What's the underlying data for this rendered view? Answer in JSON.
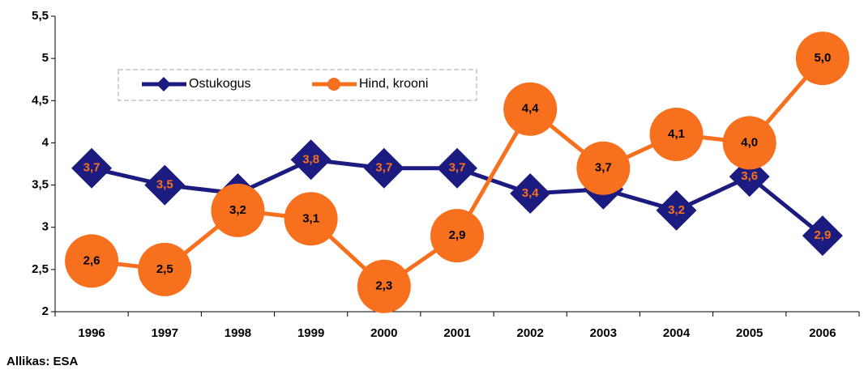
{
  "chart_data": {
    "type": "line",
    "categories": [
      "1996",
      "1997",
      "1998",
      "1999",
      "2000",
      "2001",
      "2002",
      "2003",
      "2004",
      "2005",
      "2006"
    ],
    "series": [
      {
        "name": "Ostukogus",
        "color": "#1c1c80",
        "marker": "diamond",
        "values": [
          3.7,
          3.5,
          3.4,
          3.8,
          3.7,
          3.7,
          3.4,
          3.45,
          3.2,
          3.6,
          2.9
        ],
        "value_labels": [
          "3,7",
          "3,5",
          "3,4",
          "3,8",
          "3,7",
          "3,7",
          "3,4",
          null,
          "3,2",
          "3,6",
          "2,9"
        ]
      },
      {
        "name": "Hind, krooni",
        "color": "#f7701e",
        "marker": "circle",
        "values": [
          2.6,
          2.5,
          3.2,
          3.1,
          2.3,
          2.9,
          4.4,
          3.7,
          4.1,
          4.0,
          5.0
        ],
        "value_labels": [
          "2,6",
          "2,5",
          "3,2",
          "3,1",
          "2,3",
          "2,9",
          "4,4",
          "3,7",
          "4,1",
          "4,0",
          "5,0"
        ]
      }
    ],
    "ylim": [
      2,
      5.5
    ],
    "yticks": [
      2,
      {
        "value": 2.5,
        "label": "2,5"
      },
      3,
      {
        "value": 3.5,
        "label": "3,5"
      },
      4,
      {
        "value": 4.5,
        "label": "4,5"
      },
      5,
      {
        "value": 5.5,
        "label": "5,5"
      }
    ],
    "source": "Allikas: ESA"
  }
}
